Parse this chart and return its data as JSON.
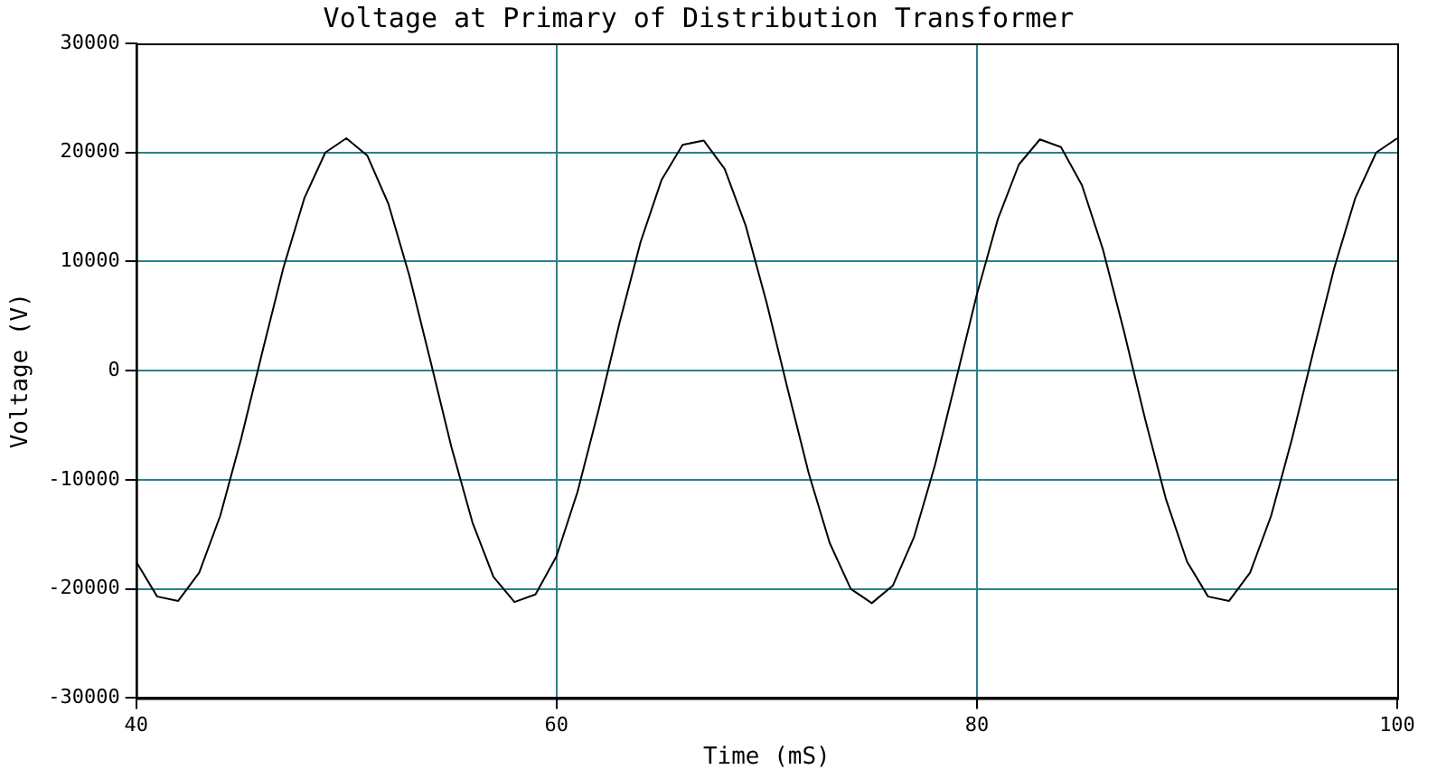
{
  "chart_data": {
    "type": "line",
    "title": "Voltage at Primary of Distribution Transformer",
    "xlabel": "Time (mS)",
    "ylabel": "Voltage (V)",
    "x": [
      40,
      41,
      42,
      43,
      44,
      45,
      46,
      47,
      48,
      49,
      50,
      51,
      52,
      53,
      54,
      55,
      56,
      57,
      58,
      59,
      60,
      61,
      62,
      63,
      64,
      65,
      66,
      67,
      68,
      69,
      70,
      71,
      72,
      73,
      74,
      75,
      76,
      77,
      78,
      79,
      80,
      81,
      82,
      83,
      84,
      85,
      86,
      87,
      88,
      89,
      90,
      91,
      92,
      93,
      94,
      95,
      96,
      97,
      98,
      99,
      100
    ],
    "series": [
      {
        "color": "#000000",
        "values": [
          -17500,
          -20700,
          -21100,
          -18500,
          -13300,
          -6200,
          1700,
          9400,
          15800,
          20000,
          21300,
          19700,
          15300,
          8700,
          900,
          -7000,
          -13900,
          -18900,
          -21200,
          -20500,
          -17000,
          -11100,
          -3600,
          4400,
          11800,
          17500,
          20700,
          21100,
          18500,
          13300,
          6200,
          -1700,
          -9400,
          -15800,
          -20000,
          -21300,
          -19700,
          -15300,
          -8700,
          -900,
          7000,
          13900,
          18900,
          21200,
          20500,
          17000,
          11100,
          3600,
          -4400,
          -11800,
          -17500,
          -20700,
          -21100,
          -18500,
          -13300,
          -6200,
          1700,
          9400,
          15800,
          20000,
          21300
        ]
      }
    ],
    "xlim": [
      40,
      100
    ],
    "xticks": [
      40,
      60,
      80,
      100
    ],
    "ylim": [
      -30000,
      30000
    ],
    "yticks": [
      -30000,
      -20000,
      -10000,
      0,
      10000,
      20000,
      30000
    ],
    "grid": true,
    "legend": false,
    "marker": "none",
    "line_style": "solid"
  }
}
